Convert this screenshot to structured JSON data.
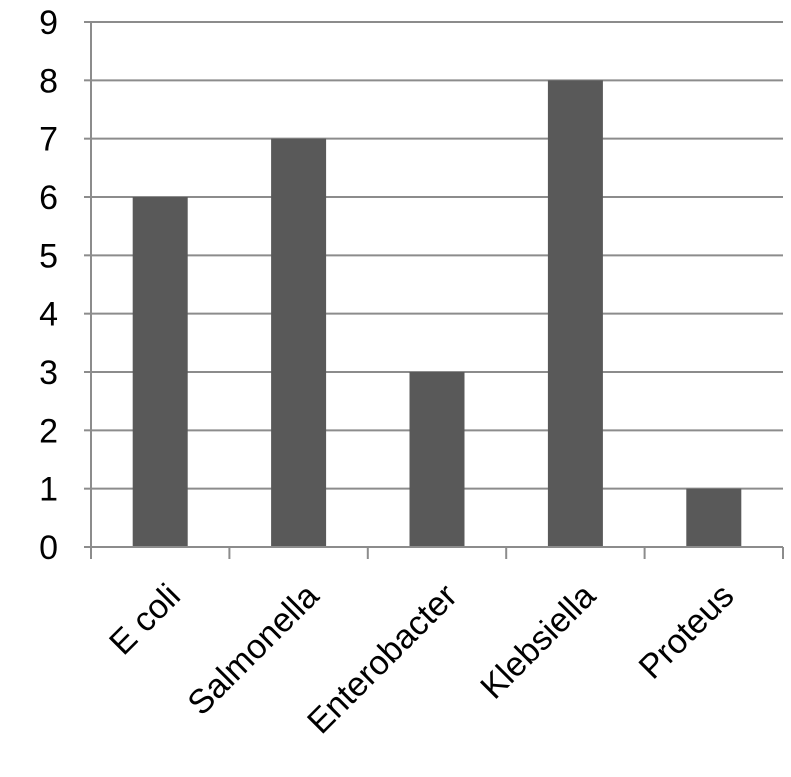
{
  "chart_data": {
    "type": "bar",
    "title": "",
    "xlabel": "",
    "ylabel": "",
    "categories": [
      "E coli",
      "Salmonella",
      "Enterobacter",
      "Klebsiella",
      "Proteus"
    ],
    "values": [
      6,
      7,
      3,
      8,
      1
    ],
    "ylim": [
      0,
      9
    ],
    "yticks": [
      "0",
      "1",
      "2",
      "3",
      "4",
      "5",
      "6",
      "7",
      "8",
      "9"
    ],
    "grid": true,
    "legend": "none",
    "colors": {
      "bar": "#595959",
      "grid": "#8c8c8c",
      "axis": "#8c8c8c",
      "text": "#000000"
    }
  }
}
